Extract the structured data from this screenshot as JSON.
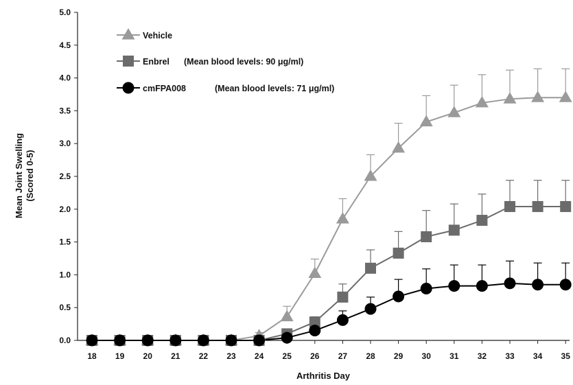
{
  "chart_data": {
    "type": "line",
    "x": [
      18,
      19,
      20,
      21,
      22,
      23,
      24,
      25,
      26,
      27,
      28,
      29,
      30,
      31,
      32,
      33,
      34,
      35
    ],
    "xlabel": "Arthritis Day",
    "ylabel_line1": "Mean Joint Swelling",
    "ylabel_line2": "(Scored 0-5)",
    "ylim": [
      0,
      5
    ],
    "yticks": [
      "0.0",
      "0.5",
      "1.0",
      "1.5",
      "2.0",
      "2.5",
      "3.0",
      "3.5",
      "4.0",
      "4.5",
      "5.0"
    ],
    "grid": false,
    "legend_position": "top-left",
    "series": [
      {
        "name": "Vehicle",
        "legend_label": "Vehicle",
        "legend_note": "",
        "marker": "triangle",
        "color": "#9a9a9a",
        "values": [
          0,
          0,
          0,
          0,
          0,
          0,
          0.07,
          0.36,
          1.02,
          1.85,
          2.5,
          2.93,
          3.33,
          3.47,
          3.62,
          3.68,
          3.7,
          3.7
        ],
        "errors": [
          0,
          0,
          0,
          0,
          0,
          0,
          0.05,
          0.16,
          0.22,
          0.31,
          0.33,
          0.38,
          0.4,
          0.42,
          0.43,
          0.44,
          0.44,
          0.44
        ]
      },
      {
        "name": "Enbrel",
        "legend_label": "Enbrel",
        "legend_note": "(Mean blood levels: 90 μg/ml)",
        "marker": "square",
        "color": "#6b6b6b",
        "values": [
          0,
          0,
          0,
          0,
          0,
          0,
          0,
          0.1,
          0.28,
          0.66,
          1.1,
          1.33,
          1.58,
          1.68,
          1.83,
          2.04,
          2.04,
          2.04
        ],
        "errors": [
          0,
          0,
          0,
          0,
          0,
          0,
          0,
          0.05,
          0.08,
          0.2,
          0.28,
          0.33,
          0.4,
          0.4,
          0.4,
          0.4,
          0.4,
          0.4
        ]
      },
      {
        "name": "cmFPA008",
        "legend_label": "cmFPA008",
        "legend_note": "(Mean blood levels: 71 μg/ml)",
        "marker": "circle",
        "color": "#000000",
        "values": [
          0,
          0,
          0,
          0,
          0,
          0,
          0,
          0.04,
          0.15,
          0.31,
          0.48,
          0.67,
          0.79,
          0.83,
          0.83,
          0.87,
          0.85,
          0.85
        ],
        "errors": [
          0,
          0,
          0,
          0,
          0,
          0,
          0,
          0.03,
          0.05,
          0.14,
          0.18,
          0.26,
          0.3,
          0.32,
          0.32,
          0.34,
          0.33,
          0.33
        ]
      }
    ]
  }
}
